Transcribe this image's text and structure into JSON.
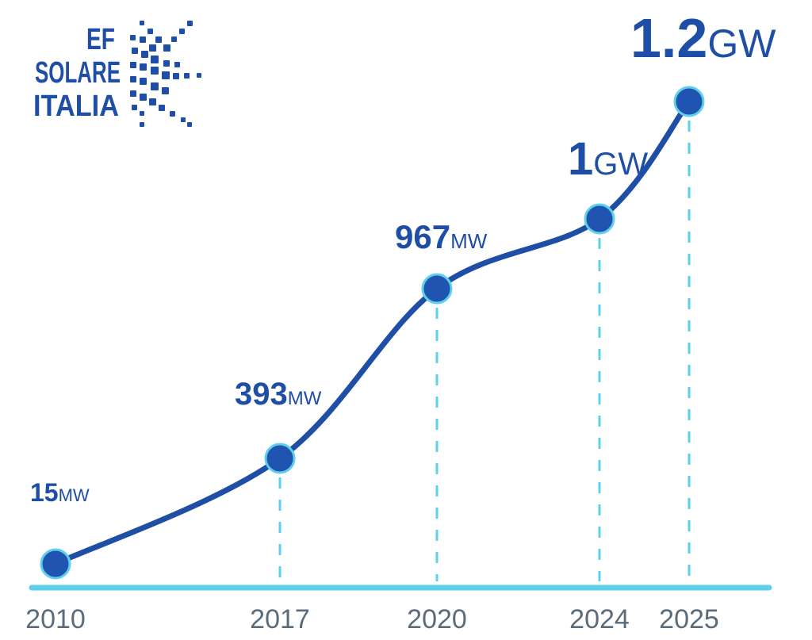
{
  "logo": {
    "lines": [
      "EF",
      "SOLARE",
      "ITALIA"
    ]
  },
  "colors": {
    "line": "#1f4ea6",
    "marker_fill": "#1f55b0",
    "marker_ring": "#5fd0ec",
    "axis": "#5fd0ec",
    "dash": "#5fd0ec",
    "tick_text": "#5b6b7a",
    "logo": "#1f4ea6"
  },
  "chart_data": {
    "type": "line",
    "x": [
      "2010",
      "2017",
      "2020",
      "2024",
      "2025"
    ],
    "values_mw": [
      15,
      393,
      967,
      1000,
      1200
    ],
    "labels": [
      {
        "value": "15",
        "unit": "MW"
      },
      {
        "value": "393",
        "unit": "MW"
      },
      {
        "value": "967",
        "unit": "MW"
      },
      {
        "value": "1",
        "unit": "GW"
      },
      {
        "value": "1.2",
        "unit": "GW"
      }
    ],
    "title": "",
    "xlabel": "",
    "ylabel": "",
    "grid": false,
    "legend": "none"
  }
}
